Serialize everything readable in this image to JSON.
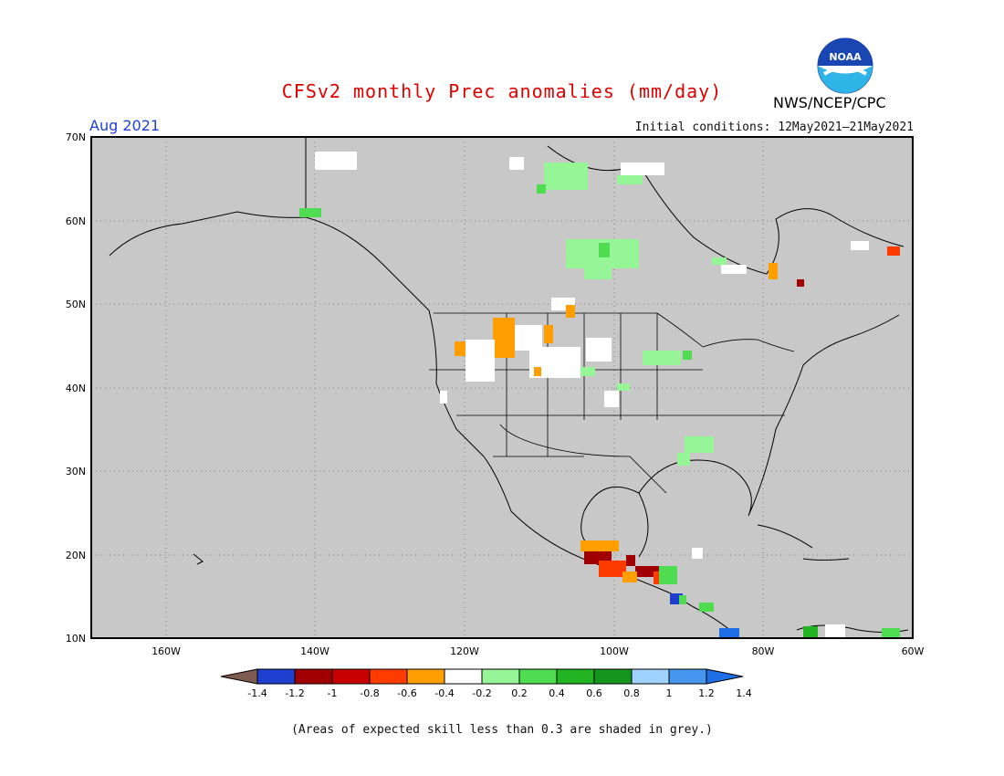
{
  "header": {
    "title": "CFSv2 monthly Prec anomalies (mm/day)",
    "period": "Aug 2021",
    "initial_conditions": "Initial conditions: 12May2021–21May2021",
    "organization": "NWS/NCEP/CPC",
    "logo_text": "NOAA"
  },
  "map": {
    "lat_labels": [
      "70N",
      "60N",
      "50N",
      "40N",
      "30N",
      "20N",
      "10N"
    ],
    "lon_labels": [
      "160W",
      "140W",
      "120W",
      "100W",
      "80W",
      "60W"
    ],
    "background_color": "#c8c8c8",
    "extent": {
      "lon_min": -170,
      "lon_max": -60,
      "lat_min": 10,
      "lat_max": 70
    }
  },
  "legend": {
    "colors": [
      "#7f5a50",
      "#1f3fd0",
      "#a00000",
      "#c80000",
      "#ff3c00",
      "#ff9e00",
      "#ffffff",
      "#96f596",
      "#50dc50",
      "#22b422",
      "#14961e",
      "#a0d2ff",
      "#4696f0",
      "#1e6ee6"
    ],
    "labels": [
      "-1.4",
      "-1.2",
      "-1",
      "-0.8",
      "-0.6",
      "-0.4",
      "-0.2",
      "0.2",
      "0.4",
      "0.6",
      "0.8",
      "1",
      "1.2",
      "1.4"
    ]
  },
  "footnote": "(Areas of expected skill less than 0.3 are shaded in grey.)"
}
